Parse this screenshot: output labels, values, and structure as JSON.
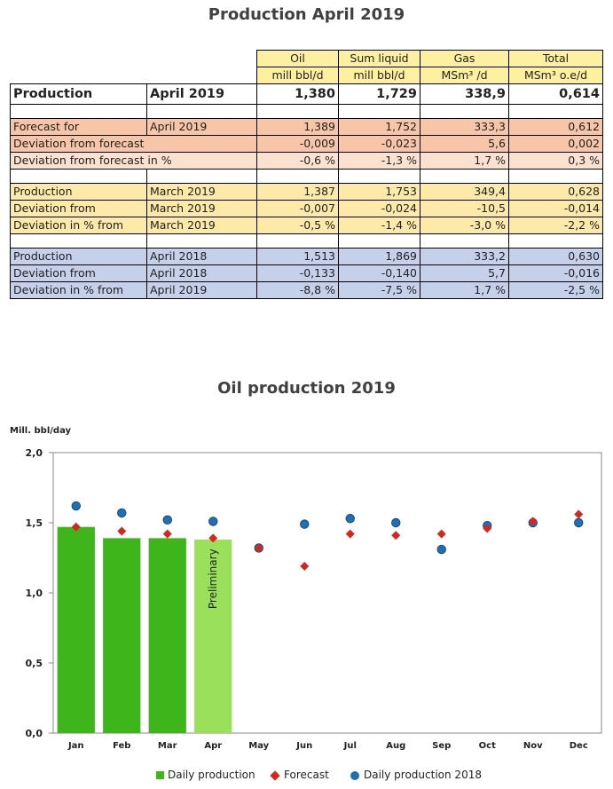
{
  "page": {
    "title": "Production April 2019",
    "chart_title": "Oil production 2019"
  },
  "table": {
    "headers": [
      {
        "top": "Oil",
        "bottom": "mill bbl/d"
      },
      {
        "top": "Sum liquid",
        "bottom": "mill bbl/d"
      },
      {
        "top": "Gas",
        "bottom": "MSm³ /d"
      },
      {
        "top": "Total",
        "bottom": "MSm³ o.e/d"
      }
    ],
    "main_row": {
      "label": "Production",
      "period": "April 2019",
      "values": [
        "1,380",
        "1,729",
        "338,9",
        "0,614"
      ]
    },
    "rows": [
      {
        "label": "Forecast for",
        "period": "April 2019",
        "values": [
          "1,389",
          "1,752",
          "333,3",
          "0,612"
        ]
      },
      {
        "label": "Deviation from forecast",
        "period": "",
        "values": [
          "-0,009",
          "-0,023",
          "5,6",
          "0,002"
        ]
      },
      {
        "label": "Deviation from forecast in %",
        "period": "",
        "values": [
          "-0,6 %",
          "-1,3 %",
          "1,7 %",
          "0,3 %"
        ]
      },
      {
        "label": "Production",
        "period": "March 2019",
        "values": [
          "1,387",
          "1,753",
          "349,4",
          "0,628"
        ]
      },
      {
        "label": "Deviation from",
        "period": "March 2019",
        "values": [
          "-0,007",
          "-0,024",
          "-10,5",
          "-0,014"
        ]
      },
      {
        "label": "Deviation  in % from",
        "period": "March 2019",
        "values": [
          "-0,5 %",
          "-1,4 %",
          "-3,0 %",
          "-2,2 %"
        ]
      },
      {
        "label": "Production",
        "period": "April 2018",
        "values": [
          "1,513",
          "1,869",
          "333,2",
          "0,630"
        ]
      },
      {
        "label": "Deviation from",
        "period": "April 2018",
        "values": [
          "-0,133",
          "-0,140",
          "5,7",
          "-0,016"
        ]
      },
      {
        "label": "Deviation  in % from",
        "period": "April 2019",
        "values": [
          "-8,8 %",
          "-7,5 %",
          "1,7 %",
          "-2,5 %"
        ]
      }
    ]
  },
  "chart_data": {
    "type": "bar",
    "title": "Oil production 2019",
    "ylabel": "Mill. bbl/day",
    "xlabel": "",
    "ylim": [
      0,
      2.0
    ],
    "yticks": [
      "0,0",
      "0,5",
      "1,0",
      "1,5",
      "2,0"
    ],
    "categories": [
      "Jan",
      "Feb",
      "Mar",
      "Apr",
      "May",
      "Jun",
      "Jul",
      "Aug",
      "Sep",
      "Oct",
      "Nov",
      "Dec"
    ],
    "bar_annotation": "Preliminary",
    "series": [
      {
        "name": "Daily production",
        "kind": "bar",
        "color": "#3fb51c",
        "preliminary_color": "#9be05a",
        "values": [
          1.47,
          1.39,
          1.39,
          1.38,
          null,
          null,
          null,
          null,
          null,
          null,
          null,
          null
        ]
      },
      {
        "name": "Forecast",
        "kind": "diamond",
        "color": "#d9261c",
        "values": [
          1.47,
          1.44,
          1.42,
          1.39,
          1.32,
          1.19,
          1.42,
          1.41,
          1.42,
          1.46,
          1.51,
          1.56
        ]
      },
      {
        "name": "Daily production 2018",
        "kind": "circle",
        "color": "#1f6fb4",
        "values": [
          1.62,
          1.57,
          1.52,
          1.51,
          1.32,
          1.49,
          1.53,
          1.5,
          1.31,
          1.48,
          1.5,
          1.5
        ]
      }
    ],
    "legend": "bottom",
    "grid": false
  }
}
